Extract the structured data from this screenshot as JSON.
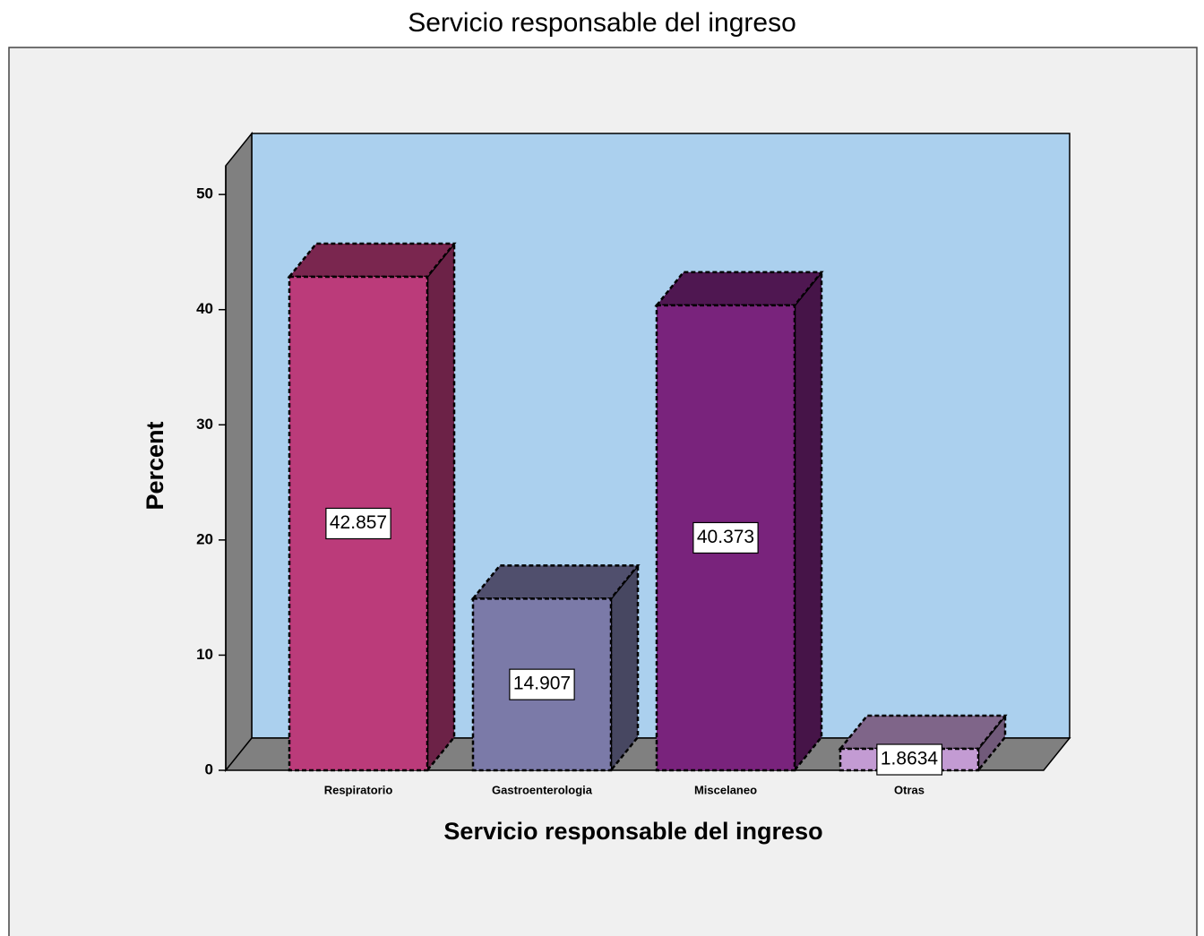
{
  "chart_data": {
    "type": "bar3d",
    "title": "Servicio responsable del ingreso",
    "x_label": "Servicio responsable del ingreso",
    "y_label": "Percent",
    "categories": [
      "Respiratorio",
      "Gastroenterologia",
      "Miscelaneo",
      "Otras"
    ],
    "values": [
      42.857,
      14.907,
      40.373,
      1.8634
    ],
    "colors": [
      "#bb3b7a",
      "#7b7aa8",
      "#79237c",
      "#c39bd3"
    ],
    "ylim": [
      0,
      52.5
    ],
    "yticks": [
      0,
      10,
      20,
      30,
      40,
      50
    ]
  }
}
